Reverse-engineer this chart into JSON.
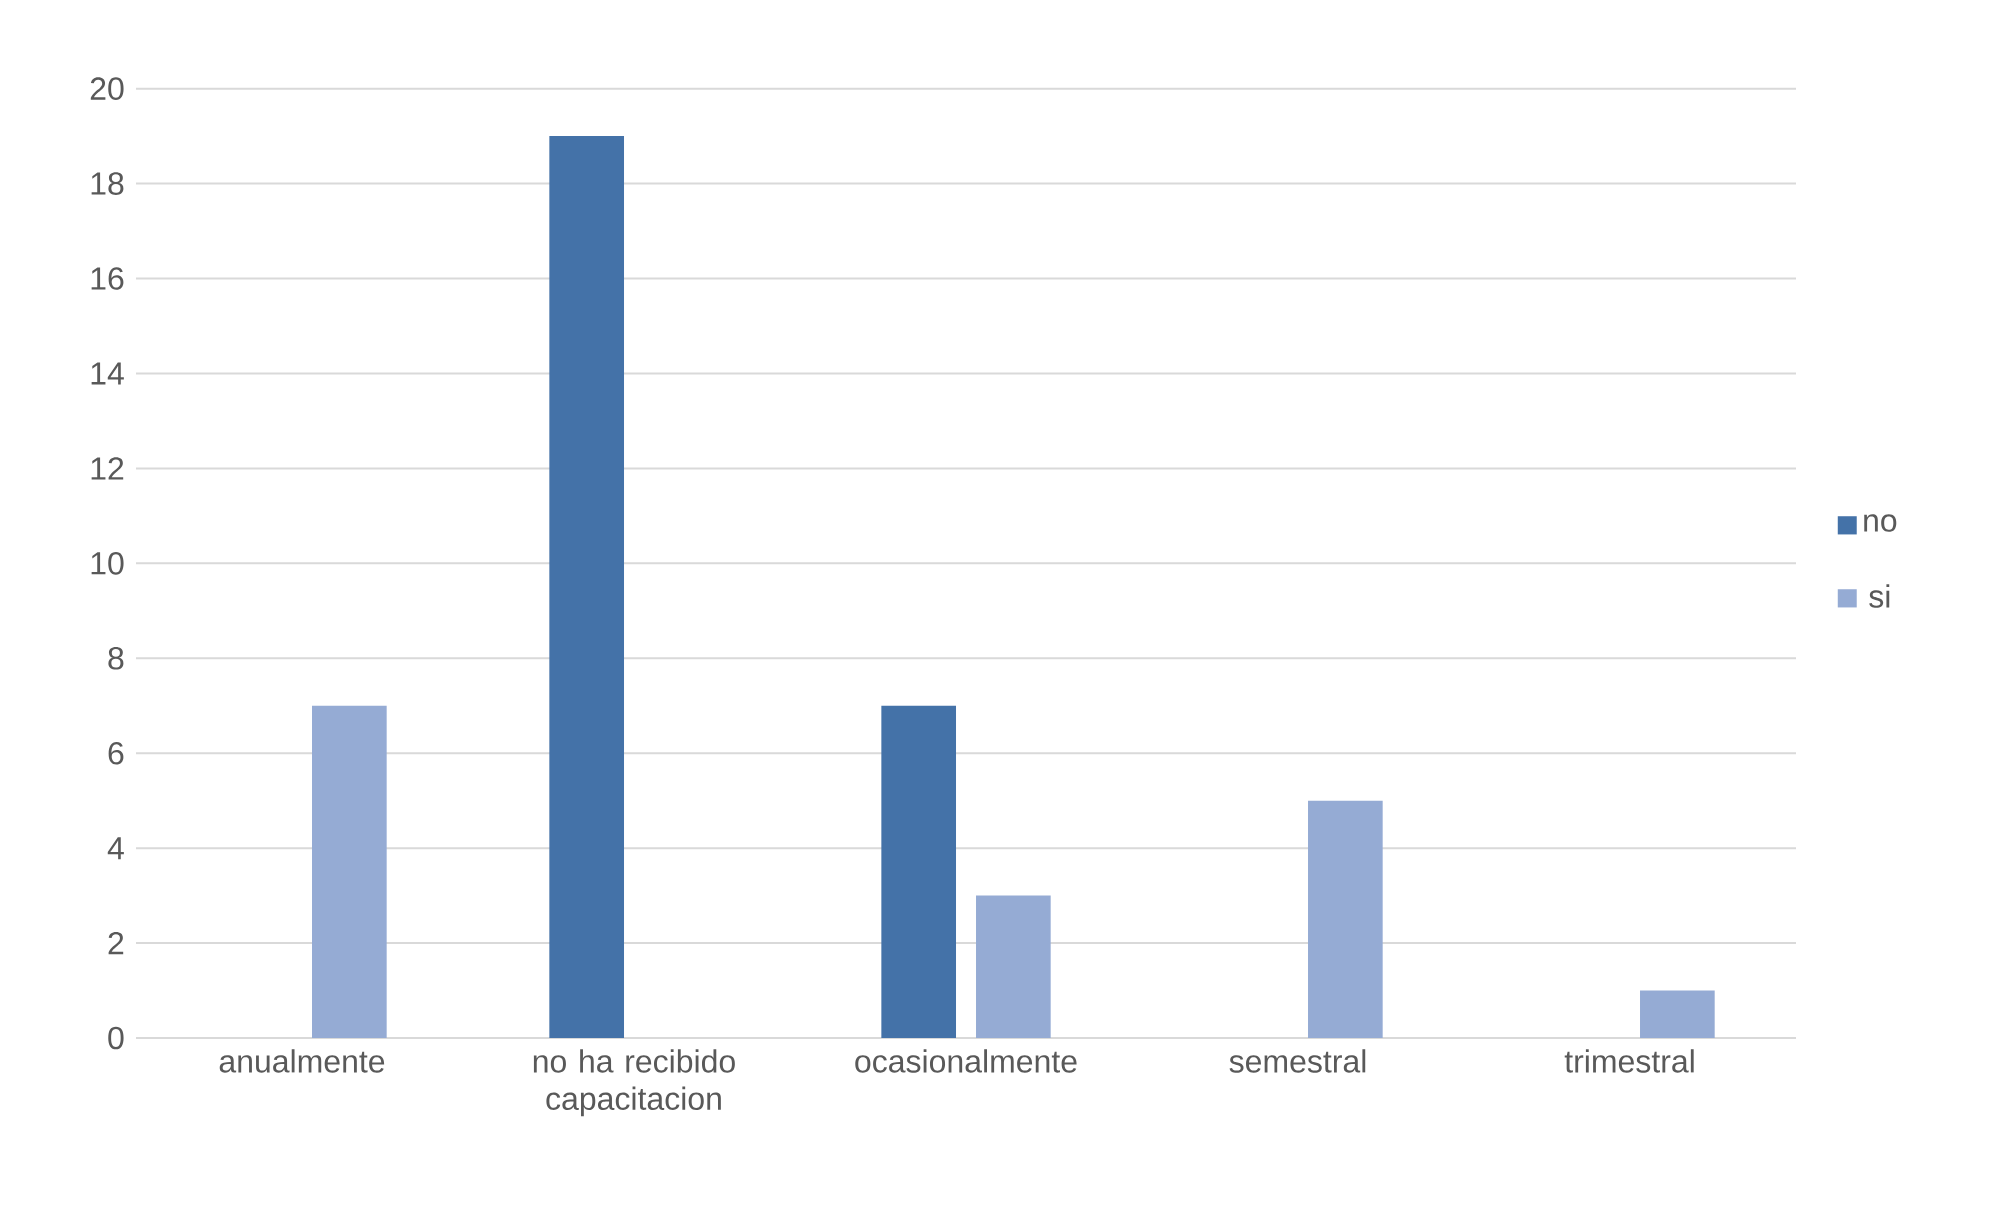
{
  "chart_data": {
    "type": "bar",
    "categories": [
      "anualmente",
      "no ha recibido capacitacion",
      "ocasionalmente",
      "semestral",
      "trimestral"
    ],
    "series": [
      {
        "name": "no",
        "color": "#4472a8",
        "values": [
          null,
          19,
          7,
          null,
          null
        ]
      },
      {
        "name": "si",
        "color": "#95abd4",
        "values": [
          7,
          null,
          3,
          5,
          1
        ]
      }
    ],
    "ylim": [
      0,
      20
    ],
    "yticks": [
      0,
      2,
      4,
      6,
      8,
      10,
      12,
      14,
      16,
      18,
      20
    ],
    "grid": "y",
    "legend": "right"
  }
}
